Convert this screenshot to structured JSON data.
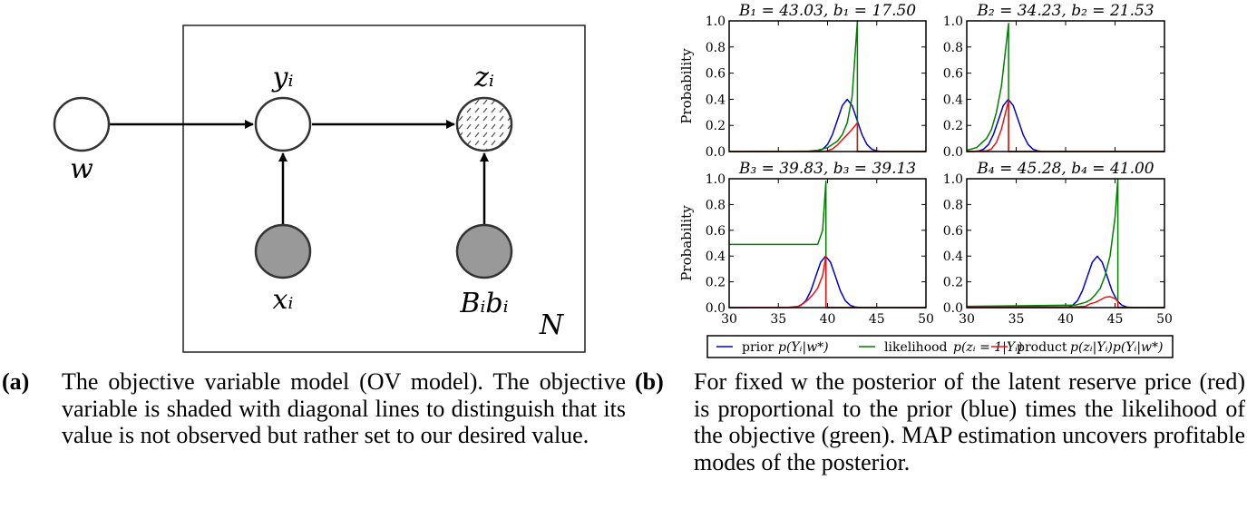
{
  "diagram": {
    "node_w": "w",
    "node_y": "yᵢ",
    "node_z": "zᵢ",
    "node_x": "xᵢ",
    "node_Bb": "Bᵢbᵢ",
    "plate_label": "N",
    "colors": {
      "observed": "#999999",
      "latent": "#ffffff",
      "stroke": "#333333"
    }
  },
  "captions": [
    {
      "tag": "(a)",
      "text": "The objective variable model (OV model). The objective variable is shaded with diagonal lines to distinguish that its value is not observed but rather set to our desired value."
    },
    {
      "tag": "(b)",
      "text": "For fixed w the posterior of the latent reserve price (red) is proportional to the prior (blue) times the likelihood of the objective (green). MAP estimation uncovers profitable modes of the posterior."
    }
  ],
  "legend": {
    "prior_word": "prior",
    "prior_math": "p(Yᵢ|w*)",
    "likelihood_word": "likelihood",
    "likelihood_math": "p(zᵢ = 1|Yᵢ)",
    "product_word": "product",
    "product_math": "p(zᵢ|Yᵢ)p(Yᵢ|w*)",
    "colors": {
      "prior": "#0000cc",
      "likelihood": "#007f00",
      "product": "#ee1111"
    }
  },
  "chart_data": [
    {
      "type": "line",
      "title": "B₁ = 43.03, b₁ = 17.50",
      "ylabel": "Probability",
      "xlabel": "",
      "xlim": [
        30,
        50
      ],
      "ylim": [
        0,
        1
      ],
      "xticks": [
        "30",
        "35",
        "40",
        "45",
        "50"
      ],
      "show_xtick_labels": false,
      "yticks": [
        "0.0",
        "0.2",
        "0.4",
        "0.6",
        "0.8",
        "1.0"
      ],
      "grid": false,
      "series": [
        {
          "name": "prior",
          "color": "#0000cc",
          "x": [
            30,
            38.5,
            39,
            39.5,
            40,
            40.5,
            41,
            41.5,
            42,
            42.5,
            43,
            43.5,
            44,
            44.5,
            45,
            45.5,
            50
          ],
          "y": [
            0,
            0.001,
            0.004,
            0.018,
            0.054,
            0.13,
            0.242,
            0.352,
            0.399,
            0.352,
            0.242,
            0.13,
            0.054,
            0.018,
            0.004,
            0.001,
            0
          ]
        },
        {
          "name": "likelihood",
          "color": "#007f00",
          "x": [
            30,
            38,
            39,
            40,
            41,
            41.5,
            42,
            42.5,
            43.03,
            43.03,
            50
          ],
          "y": [
            0,
            0.003,
            0.01,
            0.03,
            0.08,
            0.13,
            0.22,
            0.42,
            1.0,
            0,
            0
          ]
        },
        {
          "name": "product",
          "color": "#ee1111",
          "x": [
            30,
            39.5,
            40,
            40.5,
            41,
            41.5,
            42,
            42.5,
            43.03,
            43.03,
            50
          ],
          "y": [
            0,
            0,
            0.005,
            0.02,
            0.05,
            0.09,
            0.13,
            0.17,
            0.22,
            0,
            0
          ]
        }
      ]
    },
    {
      "type": "line",
      "title": "B₂ = 34.23, b₂ = 21.53",
      "ylabel": "",
      "xlabel": "",
      "xlim": [
        30,
        50
      ],
      "ylim": [
        0,
        1
      ],
      "xticks": [
        "30",
        "35",
        "40",
        "45",
        "50"
      ],
      "show_xtick_labels": false,
      "yticks": [
        "0.0",
        "0.2",
        "0.4",
        "0.6",
        "0.8",
        "1.0"
      ],
      "grid": false,
      "series": [
        {
          "name": "prior",
          "color": "#0000cc",
          "x": [
            30,
            30.7,
            31.2,
            31.7,
            32.2,
            32.7,
            33.2,
            33.7,
            34.2,
            34.7,
            35.2,
            35.7,
            36.2,
            36.7,
            37.2,
            37.7,
            50
          ],
          "y": [
            0,
            0.001,
            0.004,
            0.018,
            0.054,
            0.13,
            0.242,
            0.352,
            0.399,
            0.352,
            0.242,
            0.13,
            0.054,
            0.018,
            0.004,
            0.001,
            0
          ]
        },
        {
          "name": "likelihood",
          "color": "#007f00",
          "x": [
            30,
            31,
            32,
            32.5,
            33,
            33.5,
            34.23,
            34.23,
            50
          ],
          "y": [
            0.01,
            0.03,
            0.1,
            0.17,
            0.3,
            0.5,
            0.98,
            0,
            0
          ]
        },
        {
          "name": "product",
          "color": "#ee1111",
          "x": [
            30,
            32,
            32.5,
            33,
            33.5,
            34.23,
            34.23,
            50
          ],
          "y": [
            0,
            0.005,
            0.02,
            0.07,
            0.17,
            0.39,
            0,
            0
          ]
        }
      ]
    },
    {
      "type": "line",
      "title": "B₃ = 39.83, b₃ = 39.13",
      "ylabel": "Probability",
      "xlabel": "",
      "xlim": [
        30,
        50
      ],
      "ylim": [
        0,
        1
      ],
      "xticks": [
        "30",
        "35",
        "40",
        "45",
        "50"
      ],
      "show_xtick_labels": true,
      "yticks": [
        "0.0",
        "0.2",
        "0.4",
        "0.6",
        "0.8",
        "1.0"
      ],
      "grid": false,
      "series": [
        {
          "name": "prior",
          "color": "#0000cc",
          "x": [
            30,
            36.3,
            36.8,
            37.3,
            37.8,
            38.3,
            38.8,
            39.3,
            39.8,
            40.3,
            40.8,
            41.3,
            41.8,
            42.3,
            42.8,
            43.3,
            50
          ],
          "y": [
            0,
            0.001,
            0.004,
            0.018,
            0.054,
            0.13,
            0.242,
            0.352,
            0.399,
            0.352,
            0.242,
            0.13,
            0.054,
            0.018,
            0.004,
            0.001,
            0
          ]
        },
        {
          "name": "likelihood",
          "color": "#007f00",
          "x": [
            30,
            39,
            39.5,
            39.83,
            39.83,
            50
          ],
          "y": [
            0.49,
            0.49,
            0.6,
            0.98,
            0,
            0
          ]
        },
        {
          "name": "product",
          "color": "#ee1111",
          "x": [
            30,
            36,
            37,
            37.5,
            38,
            38.5,
            39,
            39.5,
            39.83,
            39.83,
            50
          ],
          "y": [
            0,
            0.002,
            0.01,
            0.03,
            0.06,
            0.1,
            0.15,
            0.25,
            0.4,
            0,
            0
          ]
        }
      ]
    },
    {
      "type": "line",
      "title": "B₄ = 45.28, b₄ = 41.00",
      "ylabel": "",
      "xlabel": "",
      "xlim": [
        30,
        50
      ],
      "ylim": [
        0,
        1
      ],
      "xticks": [
        "30",
        "35",
        "40",
        "45",
        "50"
      ],
      "show_xtick_labels": true,
      "yticks": [
        "0.0",
        "0.2",
        "0.4",
        "0.6",
        "0.8",
        "1.0"
      ],
      "grid": false,
      "series": [
        {
          "name": "prior",
          "color": "#0000cc",
          "x": [
            30,
            39.7,
            40.2,
            40.7,
            41.2,
            41.7,
            42.2,
            42.7,
            43.2,
            43.7,
            44.2,
            44.7,
            45.2,
            45.7,
            46.2,
            46.7,
            50
          ],
          "y": [
            0,
            0.001,
            0.004,
            0.018,
            0.054,
            0.13,
            0.242,
            0.352,
            0.399,
            0.352,
            0.242,
            0.13,
            0.054,
            0.018,
            0.004,
            0.001,
            0
          ]
        },
        {
          "name": "likelihood",
          "color": "#007f00",
          "x": [
            30,
            41,
            42,
            42.5,
            43,
            43.5,
            44,
            44.5,
            45,
            45.28,
            45.28,
            50
          ],
          "y": [
            0.01,
            0.02,
            0.04,
            0.06,
            0.1,
            0.15,
            0.25,
            0.4,
            0.7,
            1.0,
            0,
            0
          ]
        },
        {
          "name": "product",
          "color": "#ee1111",
          "x": [
            30,
            41,
            42,
            42.5,
            43,
            43.5,
            44,
            44.5,
            45,
            45.28,
            45.28,
            50
          ],
          "y": [
            0.005,
            0.006,
            0.01,
            0.03,
            0.04,
            0.06,
            0.08,
            0.085,
            0.07,
            0.05,
            0,
            0
          ]
        }
      ]
    }
  ]
}
